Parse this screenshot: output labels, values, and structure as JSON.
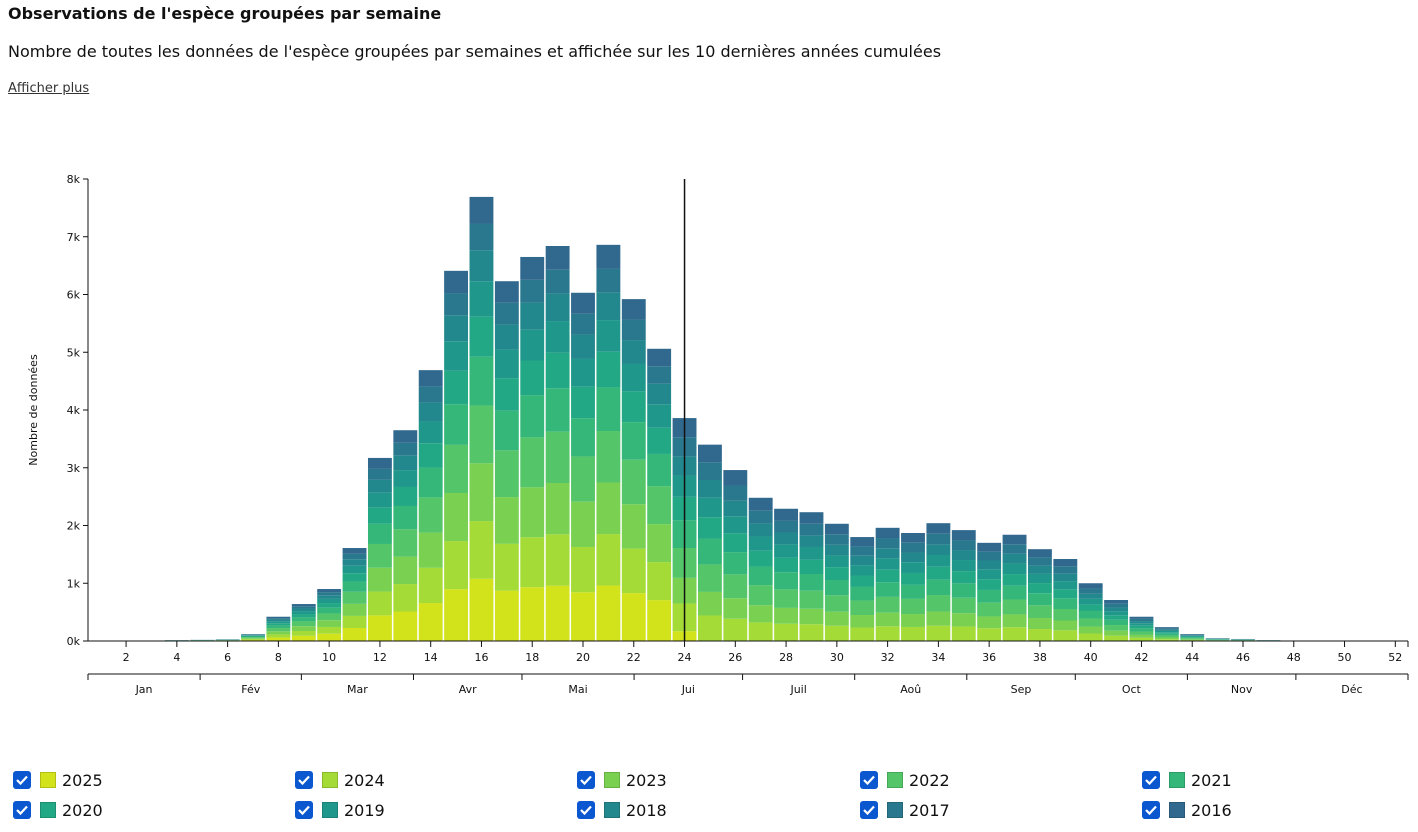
{
  "header": {
    "title": "Observations de l'espèce groupées par semaine",
    "subtitle": "Nombre de toutes les données de l'espèce groupées par semaines et affichée sur les 10 dernières années cumulées",
    "link": "Afficher plus"
  },
  "chart_data": {
    "type": "stacked_bar",
    "ylabel": "Nombre de données",
    "categories": [
      null,
      2,
      null,
      4,
      null,
      6,
      null,
      8,
      null,
      10,
      null,
      12,
      null,
      14,
      null,
      16,
      null,
      18,
      null,
      20,
      null,
      22,
      null,
      24,
      null,
      26,
      null,
      28,
      null,
      30,
      null,
      32,
      null,
      34,
      null,
      36,
      null,
      38,
      null,
      40,
      null,
      42,
      null,
      44,
      null,
      46,
      null,
      48,
      null,
      50,
      null,
      52
    ],
    "months": [
      "Jan",
      "Fév",
      "Mar",
      "Avr",
      "Mai",
      "Jui",
      "Juil",
      "Aoû",
      "Sep",
      "Oct",
      "Nov",
      "Déc"
    ],
    "ylim": [
      0,
      8000
    ],
    "yticks": [
      {
        "value": 0,
        "label": "0k"
      },
      {
        "value": 1000,
        "label": "1k"
      },
      {
        "value": 2000,
        "label": "2k"
      },
      {
        "value": 3000,
        "label": "3k"
      },
      {
        "value": 4000,
        "label": "4k"
      },
      {
        "value": 5000,
        "label": "5k"
      },
      {
        "value": 6000,
        "label": "6k"
      },
      {
        "value": 7000,
        "label": "7k"
      },
      {
        "value": 8000,
        "label": "8k"
      }
    ],
    "series": [
      {
        "name": "2025",
        "color": "#d2e21b",
        "values": [
          0,
          0,
          1,
          2,
          3,
          4,
          17,
          59,
          90,
          126,
          225,
          444,
          511,
          657,
          897,
          1077,
          872,
          931,
          958,
          844,
          960,
          829,
          708,
          170,
          0,
          0,
          0,
          0,
          0,
          0,
          0,
          0,
          0,
          0,
          0,
          0,
          0,
          0,
          0,
          0,
          0,
          0,
          0,
          0,
          0,
          0,
          0,
          0,
          0,
          0,
          0,
          0
        ]
      },
      {
        "name": "2024",
        "color": "#a5db36",
        "values": [
          0,
          0,
          1,
          2,
          3,
          4,
          16,
          55,
          83,
          117,
          209,
          412,
          475,
          610,
          833,
          1000,
          810,
          865,
          889,
          784,
          892,
          770,
          658,
          480,
          442,
          385,
          322,
          298,
          290,
          264,
          234,
          255,
          243,
          265,
          250,
          221,
          239,
          207,
          185,
          130,
          92,
          55,
          31,
          16,
          7,
          5,
          2,
          1,
          1,
          1,
          1,
          1
        ]
      },
      {
        "name": "2023",
        "color": "#7ad151",
        "values": [
          0,
          0,
          1,
          2,
          3,
          4,
          16,
          55,
          83,
          117,
          209,
          412,
          475,
          610,
          833,
          1000,
          810,
          865,
          889,
          784,
          892,
          770,
          658,
          443,
          408,
          355,
          298,
          275,
          268,
          244,
          216,
          235,
          224,
          245,
          230,
          204,
          221,
          191,
          170,
          120,
          85,
          50,
          29,
          14,
          6,
          4,
          2,
          1,
          1,
          1,
          1,
          1
        ]
      },
      {
        "name": "2022",
        "color": "#54c568",
        "values": [
          0,
          0,
          1,
          2,
          3,
          4,
          16,
          55,
          83,
          117,
          209,
          412,
          475,
          610,
          833,
          1000,
          810,
          865,
          889,
          784,
          892,
          770,
          658,
          517,
          476,
          414,
          347,
          321,
          312,
          284,
          252,
          274,
          262,
          286,
          269,
          238,
          258,
          223,
          199,
          140,
          99,
          59,
          34,
          17,
          7,
          5,
          2,
          1,
          1,
          1,
          1,
          1
        ]
      },
      {
        "name": "2021",
        "color": "#35b779",
        "values": [
          0,
          0,
          1,
          2,
          2,
          3,
          13,
          46,
          70,
          99,
          177,
          349,
          402,
          516,
          705,
          846,
          685,
          732,
          752,
          663,
          755,
          651,
          557,
          480,
          442,
          385,
          322,
          298,
          290,
          264,
          234,
          255,
          243,
          265,
          250,
          221,
          239,
          207,
          185,
          130,
          92,
          55,
          31,
          16,
          7,
          5,
          2,
          1,
          1,
          1,
          1,
          1
        ]
      },
      {
        "name": "2020",
        "color": "#22a884",
        "values": [
          0,
          0,
          0,
          1,
          2,
          3,
          11,
          38,
          58,
          81,
          145,
          285,
          329,
          422,
          577,
          692,
          561,
          599,
          616,
          543,
          617,
          533,
          455,
          406,
          374,
          326,
          273,
          252,
          245,
          223,
          198,
          216,
          206,
          224,
          211,
          187,
          202,
          175,
          156,
          110,
          78,
          46,
          26,
          13,
          5,
          4,
          2,
          0,
          0,
          0,
          0,
          0
        ]
      },
      {
        "name": "2019",
        "color": "#1f988b",
        "values": [
          0,
          0,
          0,
          1,
          1,
          2,
          10,
          34,
          51,
          72,
          129,
          254,
          292,
          375,
          513,
          615,
          498,
          532,
          547,
          482,
          549,
          474,
          405,
          369,
          340,
          296,
          248,
          229,
          223,
          203,
          180,
          196,
          187,
          204,
          192,
          170,
          184,
          159,
          142,
          100,
          71,
          42,
          24,
          12,
          5,
          3,
          2,
          0,
          0,
          0,
          0,
          0
        ]
      },
      {
        "name": "2018",
        "color": "#23888e",
        "values": [
          0,
          0,
          0,
          1,
          1,
          2,
          8,
          29,
          45,
          63,
          113,
          222,
          256,
          328,
          449,
          538,
          436,
          466,
          479,
          422,
          480,
          414,
          354,
          332,
          306,
          266,
          223,
          206,
          201,
          183,
          162,
          176,
          168,
          184,
          173,
          153,
          166,
          143,
          128,
          90,
          64,
          38,
          22,
          11,
          4,
          3,
          1,
          0,
          0,
          0,
          0,
          0
        ]
      },
      {
        "name": "2017",
        "color": "#2a788e",
        "values": [
          0,
          0,
          0,
          1,
          1,
          2,
          7,
          25,
          38,
          54,
          97,
          190,
          219,
          281,
          385,
          461,
          374,
          399,
          410,
          362,
          412,
          355,
          304,
          332,
          306,
          266,
          223,
          206,
          201,
          183,
          162,
          176,
          168,
          184,
          173,
          153,
          166,
          143,
          128,
          90,
          64,
          38,
          22,
          11,
          4,
          3,
          1,
          0,
          0,
          0,
          0,
          0
        ]
      },
      {
        "name": "2016",
        "color": "#31688e",
        "values": [
          0,
          0,
          0,
          1,
          1,
          2,
          6,
          24,
          39,
          54,
          97,
          190,
          216,
          281,
          385,
          461,
          374,
          396,
          411,
          362,
          411,
          354,
          303,
          331,
          306,
          267,
          224,
          205,
          200,
          182,
          162,
          177,
          169,
          183,
          172,
          153,
          165,
          142,
          127,
          90,
          65,
          37,
          21,
          10,
          4,
          3,
          1,
          0,
          0,
          0,
          0,
          0
        ]
      }
    ]
  }
}
